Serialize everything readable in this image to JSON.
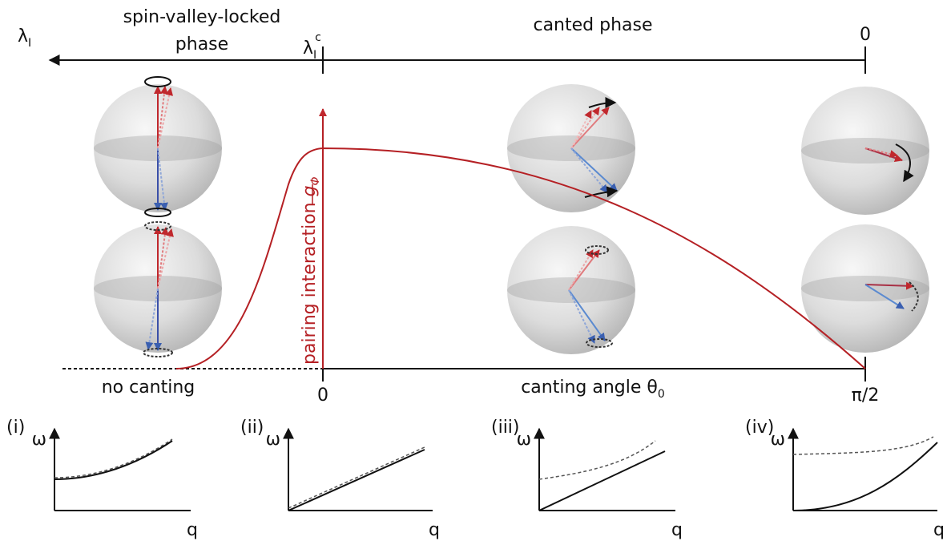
{
  "top_axis": {
    "left_label": {
      "symbol": "λ",
      "subscript": "I"
    },
    "critical_label": {
      "symbol": "λ",
      "subscript": "I",
      "superscript": "c"
    },
    "right_label": "0",
    "left_phase": [
      "spin-valley-locked",
      "phase"
    ],
    "right_phase": "canted phase"
  },
  "bottom_axis": {
    "left_note": "no canting",
    "zero": "0",
    "end": "π/2",
    "label": {
      "text": "canting angle θ",
      "subscript": "0"
    }
  },
  "curve_label": {
    "text": "pairing interaction ",
    "symbol": "g",
    "subscript": "Φ"
  },
  "panels": [
    {
      "label": "(i)",
      "y": "ω",
      "x": "q"
    },
    {
      "label": "(ii)",
      "y": "ω",
      "x": "q"
    },
    {
      "label": "(iii)",
      "y": "ω",
      "x": "q"
    },
    {
      "label": "(iv)",
      "y": "ω",
      "x": "q"
    }
  ]
}
